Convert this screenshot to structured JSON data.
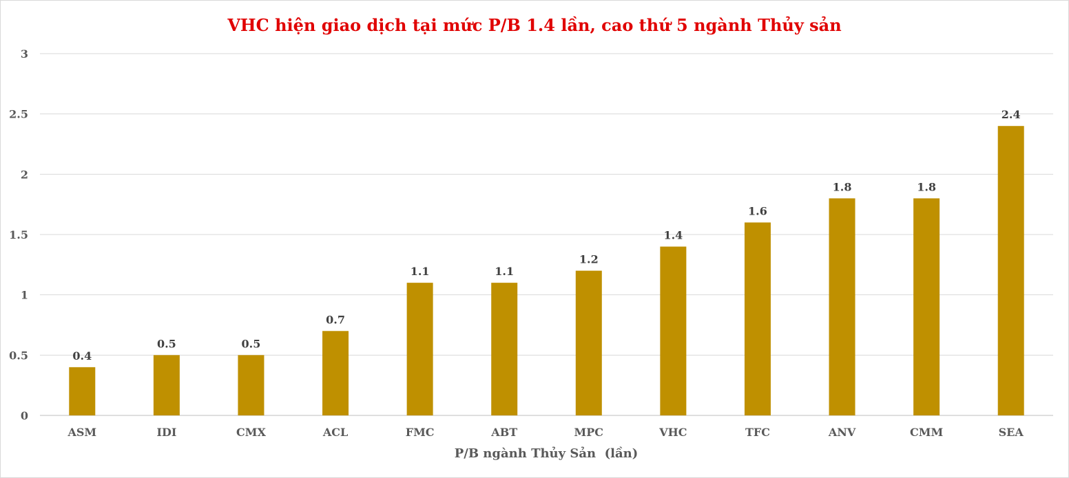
{
  "chart_data": {
    "type": "bar",
    "title": "VHC hiện giao dịch tại mức P/B 1.4 lần, cao thứ 5 ngành Thủy sản",
    "xlabel": "P/B ngành Thủy Sản  (lần)",
    "ylabel": "",
    "categories": [
      "ASM",
      "IDI",
      "CMX",
      "ACL",
      "FMC",
      "ABT",
      "MPC",
      "VHC",
      "TFC",
      "ANV",
      "CMM",
      "SEA"
    ],
    "values": [
      0.4,
      0.5,
      0.5,
      0.7,
      1.1,
      1.1,
      1.2,
      1.4,
      1.6,
      1.8,
      1.8,
      2.4
    ],
    "data_labels": [
      "0.4",
      "0.5",
      "0.5",
      "0.7",
      "1.1",
      "1.1",
      "1.2",
      "1.4",
      "1.6",
      "1.8",
      "1.8",
      "2.4"
    ],
    "ylim": [
      0,
      3
    ],
    "yticks": [
      0,
      0.5,
      1,
      1.5,
      2,
      2.5,
      3
    ],
    "ytick_labels": [
      "0",
      "0.5",
      "1",
      "1.5",
      "2",
      "2.5",
      "3"
    ],
    "grid": true,
    "legend": "none",
    "colors": {
      "bar": "#bf9000",
      "title": "#e00000",
      "grid": "#d9d9d9",
      "axis": "#bfbfbf"
    }
  }
}
